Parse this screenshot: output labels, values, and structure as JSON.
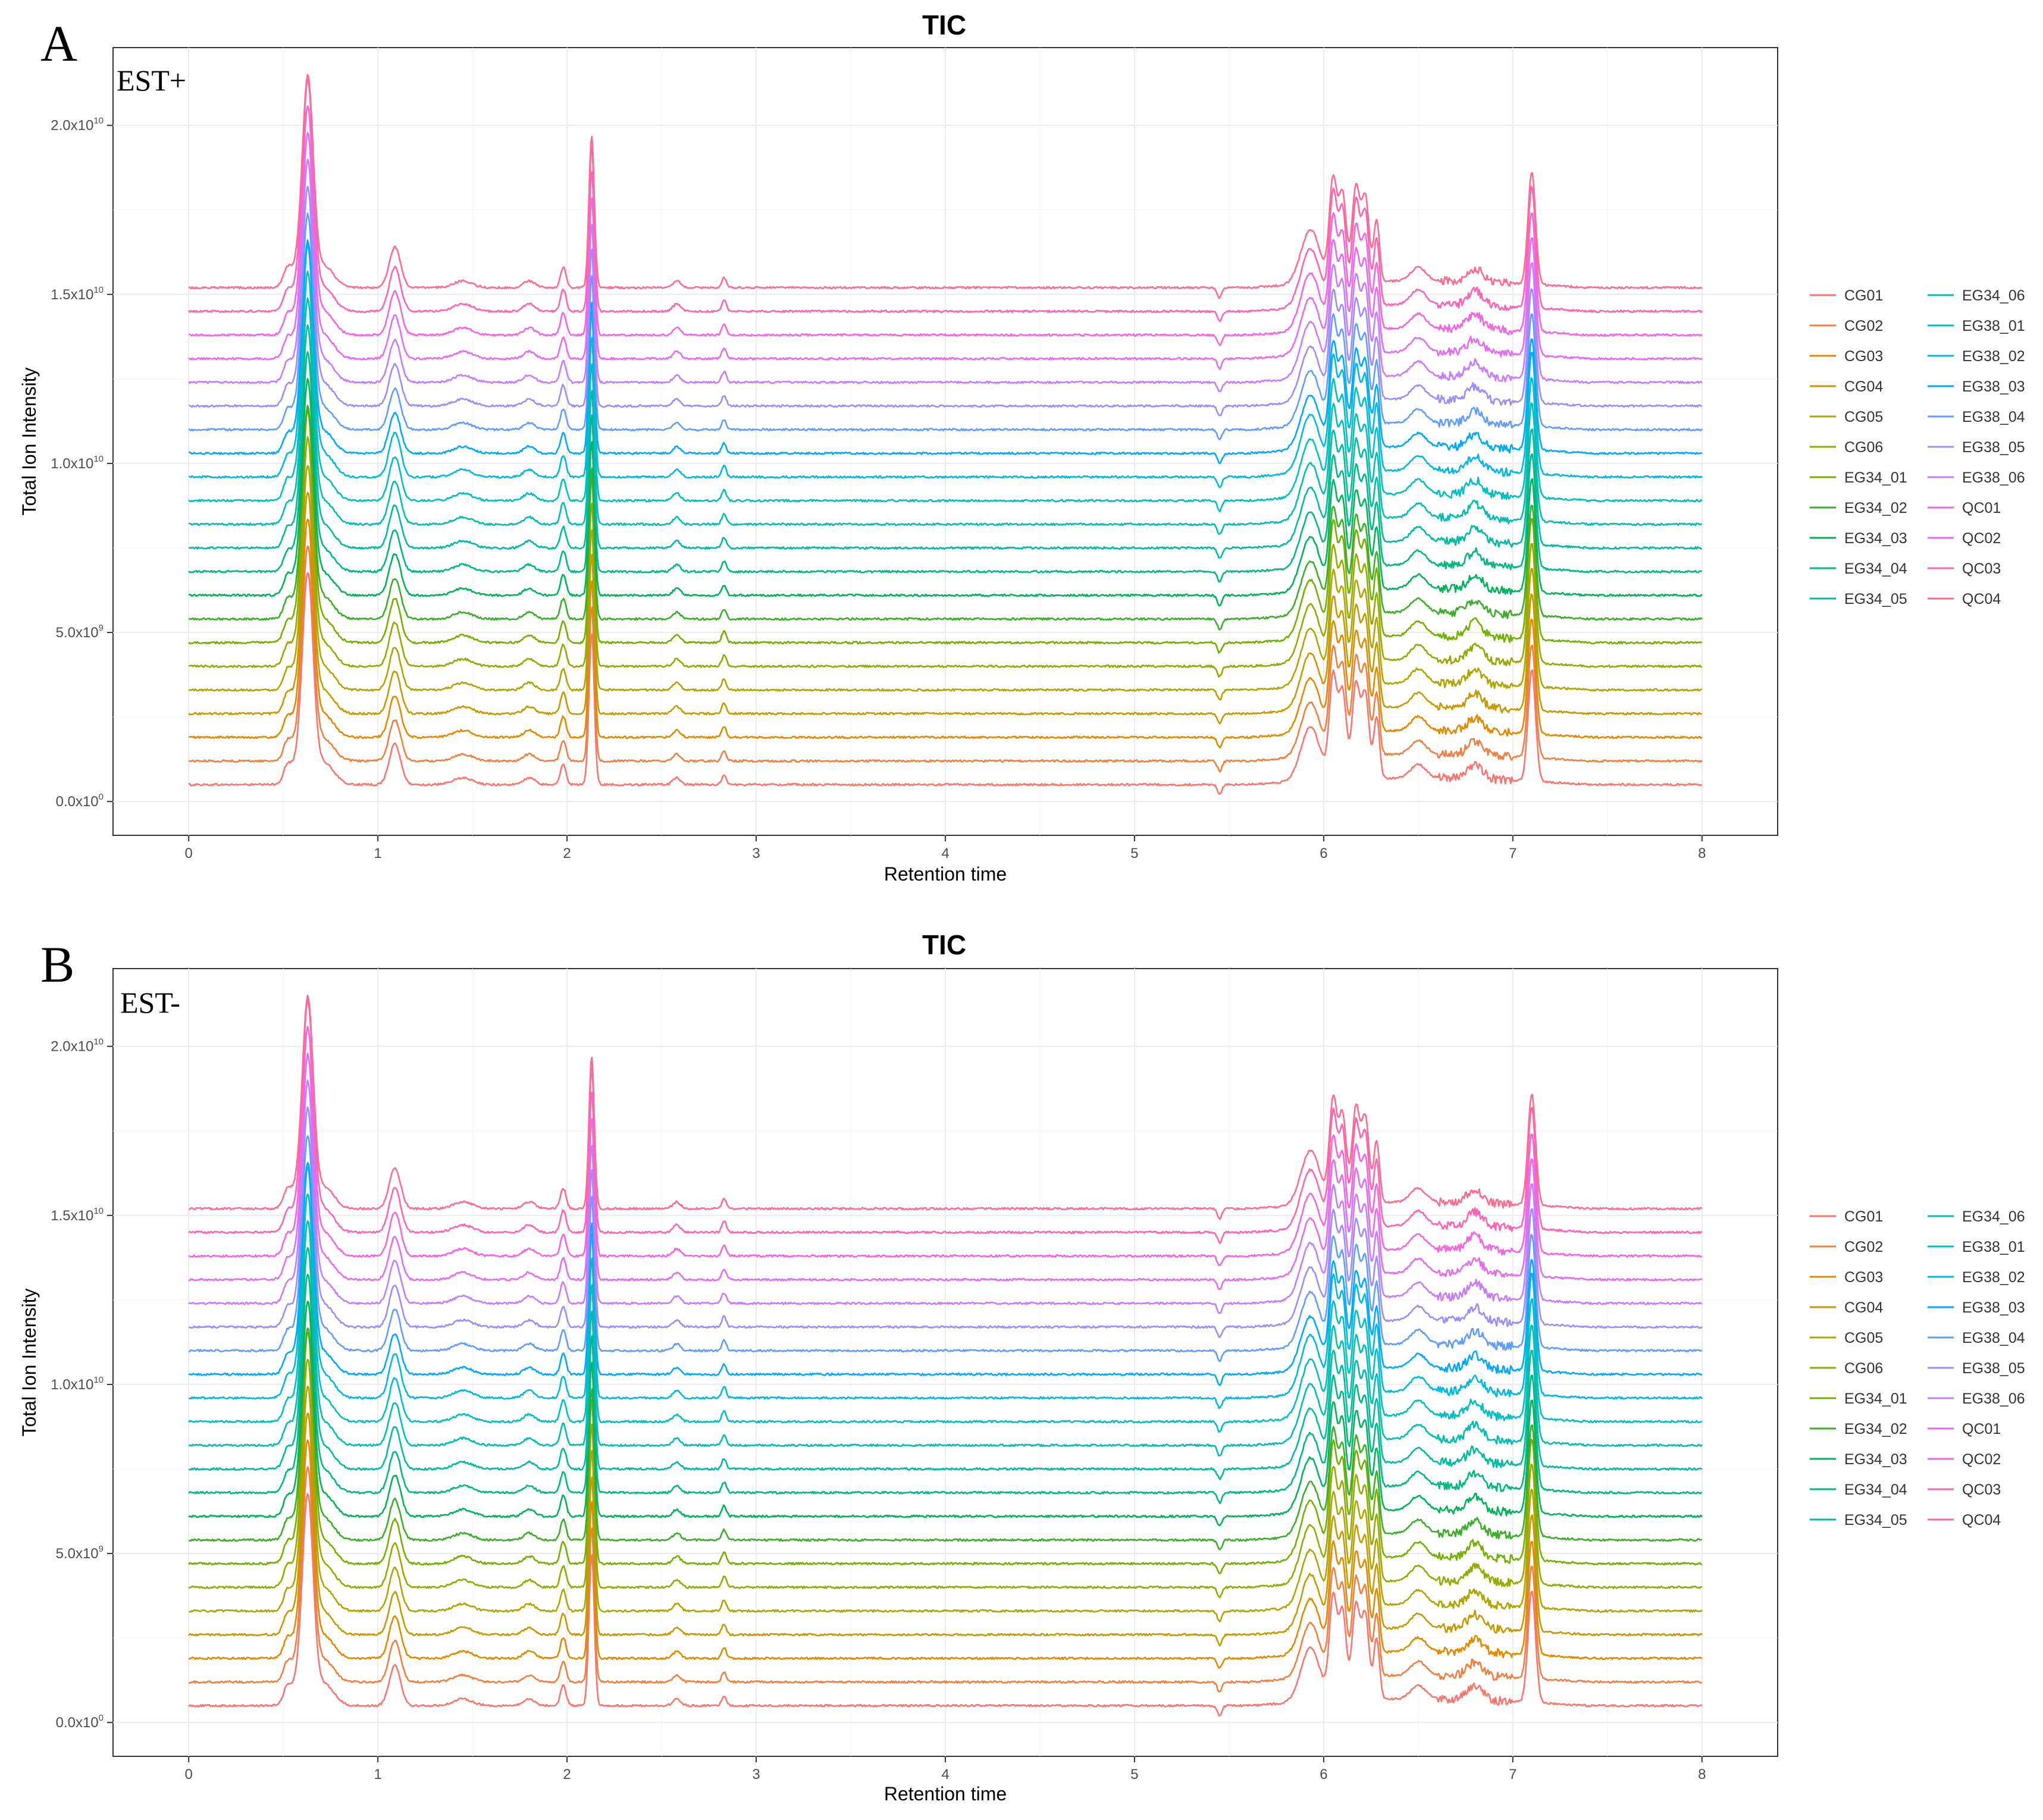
{
  "chart_data": [
    {
      "type": "line",
      "panel_label": "A",
      "mode_label": "EST+",
      "title": "TIC",
      "xlabel": "Retention time",
      "ylabel": "Total Ion Intensity",
      "xlim": [
        -0.4,
        8.4
      ],
      "ylim": [
        -1000000000.0,
        22300000000.0
      ],
      "x_ticks": [
        0,
        1,
        2,
        3,
        4,
        5,
        6,
        7,
        8
      ],
      "x_tick_labels": [
        "0",
        "1",
        "2",
        "3",
        "4",
        "5",
        "6",
        "7",
        "8"
      ],
      "y_ticks": [
        0,
        5000000000.0,
        10000000000.0,
        15000000000.0,
        20000000000.0
      ],
      "y_tick_labels": [
        {
          "mantissa": "0.0x10",
          "exp": "0"
        },
        {
          "mantissa": "5.0x10",
          "exp": "9"
        },
        {
          "mantissa": "1.0x10",
          "exp": "10"
        },
        {
          "mantissa": "1.5x10",
          "exp": "10"
        },
        {
          "mantissa": "2.0x10",
          "exp": "10"
        }
      ],
      "grid": true,
      "legend_position": "right",
      "series": [
        {
          "name": "CG01",
          "color": "#F8766D",
          "baseline": 500000000.0
        },
        {
          "name": "CG02",
          "color": "#EE8042",
          "baseline": 1200000000.0
        },
        {
          "name": "CG03",
          "color": "#E18A00",
          "baseline": 1900000000.0
        },
        {
          "name": "CG04",
          "color": "#C49A00",
          "baseline": 2600000000.0
        },
        {
          "name": "CG05",
          "color": "#B0A500",
          "baseline": 3300000000.0
        },
        {
          "name": "CG06",
          "color": "#94AA00",
          "baseline": 4000000000.0
        },
        {
          "name": "EG34_01",
          "color": "#72B000",
          "baseline": 4700000000.0
        },
        {
          "name": "EG34_02",
          "color": "#3BAE28",
          "baseline": 5400000000.0
        },
        {
          "name": "EG34_03",
          "color": "#00B35B",
          "baseline": 6100000000.0
        },
        {
          "name": "EG34_04",
          "color": "#00B882",
          "baseline": 6800000000.0
        },
        {
          "name": "EG34_05",
          "color": "#00BB9E",
          "baseline": 7500000000.0
        },
        {
          "name": "EG34_06",
          "color": "#00BDB6",
          "baseline": 8200000000.0
        },
        {
          "name": "EG38_01",
          "color": "#00BFC4",
          "baseline": 8900000000.0
        },
        {
          "name": "EG38_02",
          "color": "#00B8E0",
          "baseline": 9600000000.0
        },
        {
          "name": "EG38_03",
          "color": "#00A9FF",
          "baseline": 10300000000.0
        },
        {
          "name": "EG38_04",
          "color": "#619CFF",
          "baseline": 11000000000.0
        },
        {
          "name": "EG38_05",
          "color": "#9D8BFF",
          "baseline": 11700000000.0
        },
        {
          "name": "EG38_06",
          "color": "#C77CFF",
          "baseline": 12400000000.0
        },
        {
          "name": "QC01",
          "color": "#E36CF1",
          "baseline": 13100000000.0
        },
        {
          "name": "QC02",
          "color": "#F564E3",
          "baseline": 13800000000.0
        },
        {
          "name": "QC03",
          "color": "#FF64B0",
          "baseline": 14500000000.0
        },
        {
          "name": "QC04",
          "color": "#FF6C91",
          "baseline": 15200000000.0
        }
      ]
    },
    {
      "type": "line",
      "panel_label": "B",
      "mode_label": "EST-",
      "title": "TIC",
      "xlabel": "Retention time",
      "ylabel": "Total Ion Intensity",
      "xlim": [
        -0.4,
        8.4
      ],
      "ylim": [
        -1000000000.0,
        22300000000.0
      ],
      "x_ticks": [
        0,
        1,
        2,
        3,
        4,
        5,
        6,
        7,
        8
      ],
      "x_tick_labels": [
        "0",
        "1",
        "2",
        "3",
        "4",
        "5",
        "6",
        "7",
        "8"
      ],
      "y_ticks": [
        0,
        5000000000.0,
        10000000000.0,
        15000000000.0,
        20000000000.0
      ],
      "y_tick_labels": [
        {
          "mantissa": "0.0x10",
          "exp": "0"
        },
        {
          "mantissa": "5.0x10",
          "exp": "9"
        },
        {
          "mantissa": "1.0x10",
          "exp": "10"
        },
        {
          "mantissa": "1.5x10",
          "exp": "10"
        },
        {
          "mantissa": "2.0x10",
          "exp": "10"
        }
      ],
      "grid": true,
      "legend_position": "right",
      "series": [
        {
          "name": "CG01",
          "color": "#F8766D",
          "baseline": 500000000.0
        },
        {
          "name": "CG02",
          "color": "#EE8042",
          "baseline": 1200000000.0
        },
        {
          "name": "CG03",
          "color": "#E18A00",
          "baseline": 1900000000.0
        },
        {
          "name": "CG04",
          "color": "#C49A00",
          "baseline": 2600000000.0
        },
        {
          "name": "CG05",
          "color": "#B0A500",
          "baseline": 3300000000.0
        },
        {
          "name": "CG06",
          "color": "#94AA00",
          "baseline": 4000000000.0
        },
        {
          "name": "EG34_01",
          "color": "#72B000",
          "baseline": 4700000000.0
        },
        {
          "name": "EG34_02",
          "color": "#3BAE28",
          "baseline": 5400000000.0
        },
        {
          "name": "EG34_03",
          "color": "#00B35B",
          "baseline": 6100000000.0
        },
        {
          "name": "EG34_04",
          "color": "#00B882",
          "baseline": 6800000000.0
        },
        {
          "name": "EG34_05",
          "color": "#00BB9E",
          "baseline": 7500000000.0
        },
        {
          "name": "EG34_06",
          "color": "#00BDB6",
          "baseline": 8200000000.0
        },
        {
          "name": "EG38_01",
          "color": "#00BFC4",
          "baseline": 8900000000.0
        },
        {
          "name": "EG38_02",
          "color": "#00B8E0",
          "baseline": 9600000000.0
        },
        {
          "name": "EG38_03",
          "color": "#00A9FF",
          "baseline": 10300000000.0
        },
        {
          "name": "EG38_04",
          "color": "#619CFF",
          "baseline": 11000000000.0
        },
        {
          "name": "EG38_05",
          "color": "#9D8BFF",
          "baseline": 11700000000.0
        },
        {
          "name": "EG38_06",
          "color": "#C77CFF",
          "baseline": 12400000000.0
        },
        {
          "name": "QC01",
          "color": "#E36CF1",
          "baseline": 13100000000.0
        },
        {
          "name": "QC02",
          "color": "#F564E3",
          "baseline": 13800000000.0
        },
        {
          "name": "QC03",
          "color": "#FF64B0",
          "baseline": 14500000000.0
        },
        {
          "name": "QC04",
          "color": "#FF6C91",
          "baseline": 15200000000.0
        }
      ],
      "profile_peaks": [
        {
          "rt": 0.63,
          "height": 5500000000.0,
          "width": 0.028
        },
        {
          "rt": 0.6,
          "height": 800000000.0,
          "width": 0.05
        },
        {
          "rt": 0.52,
          "height": 400000000.0,
          "width": 0.02
        },
        {
          "rt": 0.72,
          "height": 600000000.0,
          "width": 0.05
        },
        {
          "rt": 1.09,
          "height": 1200000000.0,
          "width": 0.03
        },
        {
          "rt": 1.45,
          "height": 200000000.0,
          "width": 0.05
        },
        {
          "rt": 1.8,
          "height": 200000000.0,
          "width": 0.03
        },
        {
          "rt": 1.98,
          "height": 600000000.0,
          "width": 0.015
        },
        {
          "rt": 2.13,
          "height": 4500000000.0,
          "width": 0.014
        },
        {
          "rt": 2.58,
          "height": 200000000.0,
          "width": 0.02
        },
        {
          "rt": 2.83,
          "height": 300000000.0,
          "width": 0.012
        },
        {
          "rt": 5.93,
          "height": 1600000000.0,
          "width": 0.05
        },
        {
          "rt": 6.05,
          "height": 3000000000.0,
          "width": 0.02
        },
        {
          "rt": 6.1,
          "height": 2600000000.0,
          "width": 0.02
        },
        {
          "rt": 6.17,
          "height": 2800000000.0,
          "width": 0.02
        },
        {
          "rt": 6.22,
          "height": 2500000000.0,
          "width": 0.02
        },
        {
          "rt": 6.28,
          "height": 1800000000.0,
          "width": 0.015
        },
        {
          "rt": 6.5,
          "height": 400000000.0,
          "width": 0.04
        },
        {
          "rt": 6.8,
          "height": 400000000.0,
          "width": 0.04
        },
        {
          "rt": 7.1,
          "height": 3300000000.0,
          "width": 0.02
        }
      ]
    }
  ]
}
